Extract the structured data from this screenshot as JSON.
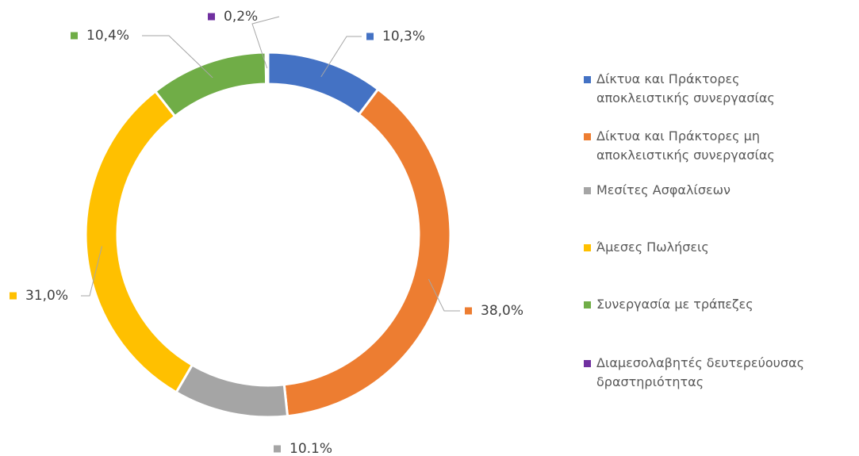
{
  "chart_data": {
    "type": "donut",
    "categories": [
      "Δίκτυα και Πράκτορες αποκλειστικής συνεργασίας",
      "Δίκτυα και Πράκτορες μη αποκλειστικής συνεργασίας",
      "Μεσίτες Ασφαλίσεων",
      "Άμεσες Πωλήσεις",
      "Συνεργασία με τράπεζες",
      "Διαμεσολαβητές δευτερεύουσας δραστηριότητας"
    ],
    "values": [
      10.3,
      38.0,
      10.1,
      31.0,
      10.4,
      0.2
    ],
    "value_labels": [
      "10,3%",
      "38,0%",
      "10.1%",
      "31,0%",
      "10,4%",
      "0,2%"
    ],
    "colors": [
      "#4472c4",
      "#ed7d31",
      "#a5a5a5",
      "#ffc000",
      "#70ad47",
      "#7030a0"
    ],
    "legend": "right"
  }
}
